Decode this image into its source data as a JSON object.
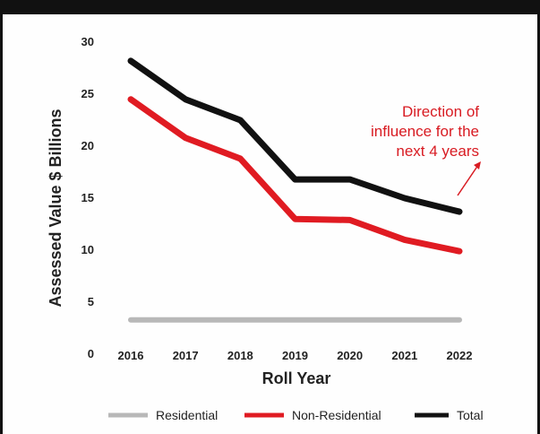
{
  "chart_data": {
    "type": "line",
    "title": "",
    "xlabel": "Roll Year",
    "ylabel": "Assessed Value $ Billions",
    "x": [
      "2016",
      "2017",
      "2018",
      "2019",
      "2020",
      "2021",
      "2022"
    ],
    "yticks": [
      "0",
      "5",
      "10",
      "15",
      "20",
      "25",
      "30"
    ],
    "ylim": [
      0,
      30
    ],
    "grid": false,
    "legend_position": "bottom",
    "series": [
      {
        "name": "Residential",
        "color": "#b8b8b8",
        "values": [
          3.3,
          3.3,
          3.3,
          3.3,
          3.3,
          3.3,
          3.3
        ]
      },
      {
        "name": "Non-Residential",
        "color": "#e01b22",
        "values": [
          24.5,
          20.8,
          18.8,
          13.0,
          12.9,
          11.0,
          9.9
        ]
      },
      {
        "name": "Total",
        "color": "#111111",
        "values": [
          28.2,
          24.5,
          22.5,
          16.8,
          16.8,
          15.0,
          13.7
        ]
      }
    ],
    "annotations": [
      {
        "lines": [
          "Direction of",
          "influence for the",
          "next 4 years"
        ],
        "color": "#d81b22"
      }
    ]
  }
}
